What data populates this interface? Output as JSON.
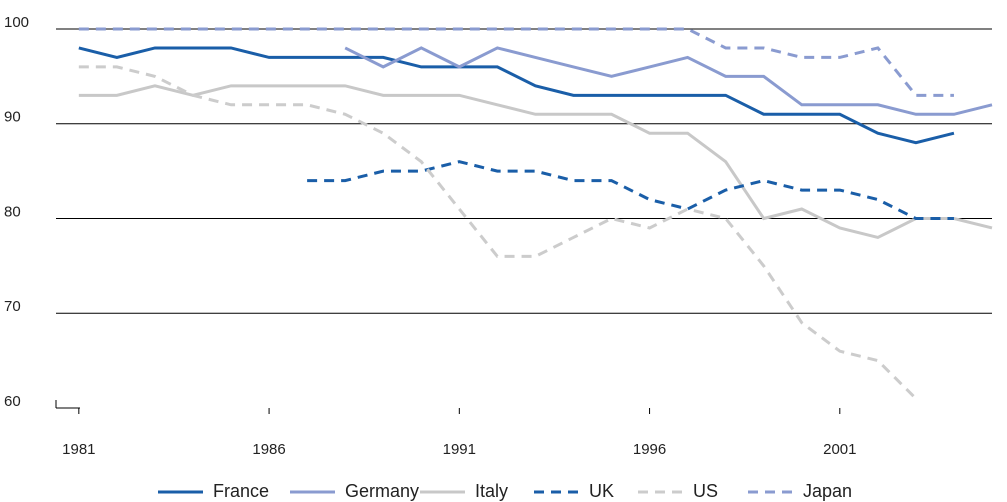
{
  "chart_data": {
    "type": "line",
    "x": [
      1981,
      1982,
      1983,
      1984,
      1985,
      1986,
      1987,
      1988,
      1989,
      1990,
      1991,
      1992,
      1993,
      1994,
      1995,
      1996,
      1997,
      1998,
      1999,
      2000,
      2001,
      2002,
      2003,
      2004,
      2005
    ],
    "xlim": [
      1980.4,
      2005
    ],
    "xticks": [
      1981,
      1986,
      1991,
      1996,
      2001
    ],
    "ylim": [
      60,
      100
    ],
    "yticks": [
      60,
      70,
      80,
      90,
      100
    ],
    "grid": true,
    "legend": "bottom",
    "series": [
      {
        "name": "France",
        "color": "#1a5ea8",
        "dashed": false,
        "values": [
          98,
          97,
          98,
          98,
          98,
          97,
          97,
          97,
          97,
          96,
          96,
          96,
          94,
          93,
          93,
          93,
          93,
          93,
          91,
          91,
          91,
          89,
          88,
          89,
          null
        ]
      },
      {
        "name": "Germany",
        "color": "#8a9bd0",
        "dashed": false,
        "values": [
          null,
          null,
          null,
          null,
          null,
          null,
          null,
          98,
          96,
          98,
          96,
          98,
          97,
          96,
          95,
          96,
          97,
          95,
          95,
          92,
          92,
          92,
          91,
          91,
          92
        ]
      },
      {
        "name": "Italy",
        "color": "#c8c8c8",
        "dashed": false,
        "values": [
          93,
          93,
          94,
          93,
          94,
          94,
          94,
          94,
          93,
          93,
          93,
          92,
          91,
          91,
          91,
          89,
          89,
          86,
          80,
          81,
          79,
          78,
          80,
          80,
          79
        ]
      },
      {
        "name": "UK",
        "color": "#1a5ea8",
        "dashed": true,
        "values": [
          null,
          null,
          null,
          null,
          null,
          null,
          84,
          84,
          85,
          85,
          86,
          85,
          85,
          84,
          84,
          82,
          81,
          83,
          84,
          83,
          83,
          82,
          80,
          80,
          null
        ]
      },
      {
        "name": "US",
        "color": "#cccccc",
        "dashed": true,
        "values": [
          96,
          96,
          95,
          93,
          92,
          92,
          92,
          91,
          89,
          86,
          81,
          76,
          76,
          78,
          80,
          79,
          81,
          80,
          75,
          69,
          66,
          65,
          61,
          null,
          null
        ]
      },
      {
        "name": "Japan",
        "color": "#8a9bd0",
        "dashed": true,
        "values": [
          100,
          100,
          100,
          100,
          100,
          100,
          100,
          100,
          100,
          100,
          100,
          100,
          100,
          100,
          100,
          100,
          100,
          98,
          98,
          97,
          97,
          98,
          93,
          93,
          null
        ]
      }
    ]
  }
}
